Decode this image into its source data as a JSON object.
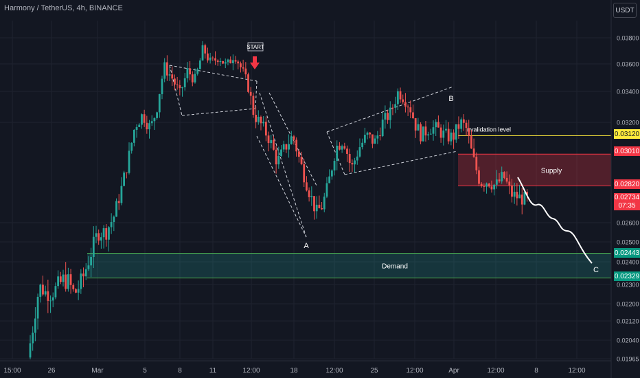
{
  "header": {
    "title": "Harmony / TetherUS, 4h, BINANCE",
    "currency_button": "USDT"
  },
  "colors": {
    "background": "#131722",
    "grid": "#1f2330",
    "up": "#26a69a",
    "down": "#ef5350",
    "supply": "#f23645",
    "demand": "#089981",
    "invalidation": "#ffeb3b",
    "text": "#d1d4dc"
  },
  "chart_data": {
    "type": "candlestick",
    "symbol": "Harmony / TetherUS",
    "interval": "4h",
    "exchange": "BINANCE",
    "x_tick_labels": [
      "15:00",
      "26",
      "Mar",
      "5",
      "8",
      "11",
      "12:00",
      "18",
      "12:00",
      "25",
      "12:00",
      "Apr",
      "12:00",
      "8",
      "12:00"
    ],
    "y_tick_labels": [
      "0.03800",
      "0.03600",
      "0.03400",
      "0.03200",
      "0.02600",
      "0.02500",
      "0.02400",
      "0.02300",
      "0.02200",
      "0.02120",
      "0.02040",
      "0.01965"
    ],
    "y_ticks": [
      0.038,
      0.036,
      0.034,
      0.032,
      0.026,
      0.025,
      0.024,
      0.023,
      0.022,
      0.0212,
      0.0204,
      0.01965
    ],
    "ylim": [
      0.0193,
      0.0393
    ],
    "price_path": [
      [
        0,
        0.0197
      ],
      [
        0.2,
        0.0206
      ],
      [
        0.6,
        0.0229
      ],
      [
        0.9,
        0.0226
      ],
      [
        1.2,
        0.0225
      ],
      [
        1.8,
        0.0232
      ],
      [
        2.1,
        0.0231
      ],
      [
        2.4,
        0.0225
      ],
      [
        2.8,
        0.0232
      ],
      [
        3.2,
        0.0243
      ],
      [
        3.6,
        0.0255
      ],
      [
        4.0,
        0.0255
      ],
      [
        4.4,
        0.0263
      ],
      [
        4.8,
        0.028
      ],
      [
        5.2,
        0.03
      ],
      [
        5.5,
        0.0318
      ],
      [
        5.9,
        0.0325
      ],
      [
        6.3,
        0.0316
      ],
      [
        6.6,
        0.0328
      ],
      [
        7.0,
        0.0358
      ],
      [
        7.4,
        0.035
      ],
      [
        7.8,
        0.0338
      ],
      [
        8.2,
        0.0355
      ],
      [
        8.6,
        0.0348
      ],
      [
        9.0,
        0.0372
      ],
      [
        9.4,
        0.036
      ],
      [
        9.8,
        0.0366
      ],
      [
        10.2,
        0.0358
      ],
      [
        10.6,
        0.0368
      ],
      [
        11.0,
        0.0355
      ],
      [
        11.3,
        0.0344
      ],
      [
        11.6,
        0.0325
      ],
      [
        12.0,
        0.0318
      ],
      [
        12.4,
        0.031
      ],
      [
        12.8,
        0.0296
      ],
      [
        13.2,
        0.0305
      ],
      [
        13.6,
        0.0312
      ],
      [
        14.0,
        0.0295
      ],
      [
        14.4,
        0.028
      ],
      [
        14.8,
        0.0266
      ],
      [
        15.1,
        0.027
      ],
      [
        15.4,
        0.0282
      ],
      [
        15.8,
        0.0305
      ],
      [
        16.2,
        0.031
      ],
      [
        16.6,
        0.0292
      ],
      [
        17.0,
        0.0305
      ],
      [
        17.4,
        0.0312
      ],
      [
        17.8,
        0.0308
      ],
      [
        18.2,
        0.032
      ],
      [
        18.6,
        0.0326
      ],
      [
        19.0,
        0.034
      ],
      [
        19.3,
        0.0336
      ],
      [
        19.6,
        0.033
      ],
      [
        19.9,
        0.0318
      ],
      [
        20.2,
        0.0312
      ],
      [
        20.6,
        0.0317
      ],
      [
        21.0,
        0.0316
      ],
      [
        21.4,
        0.0312
      ],
      [
        21.8,
        0.0311
      ],
      [
        22.2,
        0.032
      ],
      [
        22.5,
        0.0316
      ],
      [
        22.8,
        0.03
      ],
      [
        23.2,
        0.0284
      ],
      [
        23.6,
        0.0285
      ],
      [
        24.0,
        0.0282
      ],
      [
        24.4,
        0.0288
      ],
      [
        24.8,
        0.0277
      ],
      [
        25.2,
        0.0275
      ],
      [
        25.5,
        0.0274
      ]
    ],
    "annotations": {
      "start_label": "START",
      "wave_labels": {
        "a": "A",
        "b": "B",
        "c": "C"
      },
      "supply_zone": {
        "label": "Supply",
        "top": 0.0301,
        "bottom": 0.0282
      },
      "demand_zone": {
        "label": "Demand",
        "top": 0.02443,
        "bottom": 0.02329
      },
      "invalidation_level": {
        "label": "invalidation level",
        "price": 0.0312
      }
    },
    "price_tags": {
      "invalidation": "0.03120",
      "supply_top": "0.03010",
      "supply_bottom": "0.02820",
      "demand_top": "0.02443",
      "demand_bottom": "0.02329"
    },
    "last_price": {
      "value": "0.02734",
      "countdown": "07:35"
    }
  }
}
